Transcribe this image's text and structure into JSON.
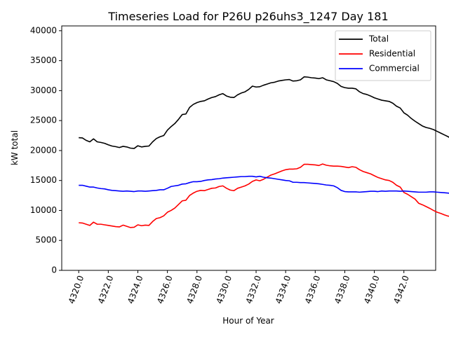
{
  "chart_data": {
    "type": "line",
    "title": "Timeseries Load for P26U p26uhs3_1247  Day 181",
    "xlabel": "Hour of Year",
    "ylabel": "kW total",
    "xlim": [
      4318.85,
      4344.15
    ],
    "ylim": [
      0,
      40800
    ],
    "xticks": [
      4320,
      4322,
      4324,
      4326,
      4328,
      4330,
      4332,
      4334,
      4336,
      4338,
      4340,
      4342
    ],
    "xtick_labels": [
      "4320.0",
      "4322.0",
      "4324.0",
      "4326.0",
      "4328.0",
      "4330.0",
      "4332.0",
      "4334.0",
      "4336.0",
      "4338.0",
      "4340.0",
      "4342.0"
    ],
    "yticks": [
      0,
      5000,
      10000,
      15000,
      20000,
      25000,
      30000,
      35000,
      40000
    ],
    "ytick_labels": [
      "0",
      "5000",
      "10000",
      "15000",
      "20000",
      "25000",
      "30000",
      "35000",
      "40000"
    ],
    "x_start": 4320,
    "x_step": 0.25,
    "legend_position": "top-right",
    "series": [
      {
        "name": "Total",
        "color": "#000000",
        "values": [
          22150,
          22100,
          21700,
          21450,
          21950,
          21450,
          21350,
          21200,
          20950,
          20750,
          20650,
          20500,
          20700,
          20600,
          20400,
          20350,
          20800,
          20600,
          20700,
          20750,
          21450,
          22000,
          22300,
          22500,
          23400,
          24000,
          24500,
          25200,
          26000,
          26100,
          27200,
          27700,
          28000,
          28200,
          28300,
          28600,
          28850,
          29000,
          29300,
          29500,
          29100,
          28900,
          28850,
          29300,
          29600,
          29800,
          30200,
          30750,
          30600,
          30650,
          30900,
          31100,
          31300,
          31400,
          31600,
          31700,
          31800,
          31850,
          31600,
          31650,
          31800,
          32300,
          32250,
          32150,
          32100,
          32000,
          32150,
          31800,
          31650,
          31500,
          31200,
          30700,
          30500,
          30400,
          30400,
          30300,
          29800,
          29500,
          29350,
          29100,
          28800,
          28600,
          28400,
          28300,
          28200,
          27900,
          27400,
          27100,
          26300,
          25900,
          25350,
          24900,
          24500,
          24100,
          23850,
          23700,
          23500,
          23200,
          22900,
          22600,
          22300,
          21850
        ]
      },
      {
        "name": "Residential",
        "color": "#ff0000",
        "values": [
          7950,
          7900,
          7700,
          7500,
          8050,
          7700,
          7700,
          7600,
          7500,
          7400,
          7300,
          7250,
          7550,
          7350,
          7150,
          7200,
          7600,
          7450,
          7550,
          7500,
          8150,
          8650,
          8800,
          9100,
          9700,
          10000,
          10400,
          11000,
          11600,
          11700,
          12500,
          12900,
          13200,
          13350,
          13300,
          13500,
          13700,
          13750,
          14000,
          14100,
          13700,
          13400,
          13300,
          13700,
          13900,
          14100,
          14400,
          14850,
          15100,
          14950,
          15200,
          15550,
          15900,
          16100,
          16350,
          16600,
          16800,
          16900,
          16900,
          16950,
          17200,
          17700,
          17700,
          17650,
          17600,
          17500,
          17750,
          17550,
          17450,
          17400,
          17400,
          17350,
          17250,
          17150,
          17300,
          17200,
          16800,
          16500,
          16300,
          16100,
          15800,
          15500,
          15300,
          15100,
          15000,
          14700,
          14200,
          13900,
          13000,
          12700,
          12300,
          11900,
          11200,
          10950,
          10650,
          10350,
          10000,
          9700,
          9500,
          9250,
          9050,
          9000
        ]
      },
      {
        "name": "Commercial",
        "color": "#0000ff",
        "values": [
          14200,
          14200,
          14050,
          13900,
          13900,
          13750,
          13650,
          13600,
          13450,
          13350,
          13300,
          13250,
          13200,
          13250,
          13200,
          13150,
          13250,
          13250,
          13200,
          13250,
          13300,
          13350,
          13450,
          13450,
          13700,
          14000,
          14100,
          14200,
          14400,
          14450,
          14650,
          14800,
          14800,
          14850,
          15000,
          15100,
          15150,
          15250,
          15300,
          15400,
          15450,
          15500,
          15550,
          15600,
          15650,
          15650,
          15700,
          15700,
          15600,
          15700,
          15550,
          15450,
          15400,
          15300,
          15200,
          15100,
          15000,
          14950,
          14700,
          14700,
          14650,
          14650,
          14600,
          14550,
          14500,
          14450,
          14350,
          14250,
          14200,
          14100,
          13800,
          13350,
          13150,
          13100,
          13100,
          13100,
          13050,
          13100,
          13150,
          13200,
          13200,
          13150,
          13250,
          13200,
          13250,
          13250,
          13250,
          13200,
          13250,
          13200,
          13150,
          13100,
          13050,
          13050,
          13050,
          13100,
          13100,
          13050,
          13000,
          12950,
          12900,
          12800
        ]
      }
    ]
  }
}
